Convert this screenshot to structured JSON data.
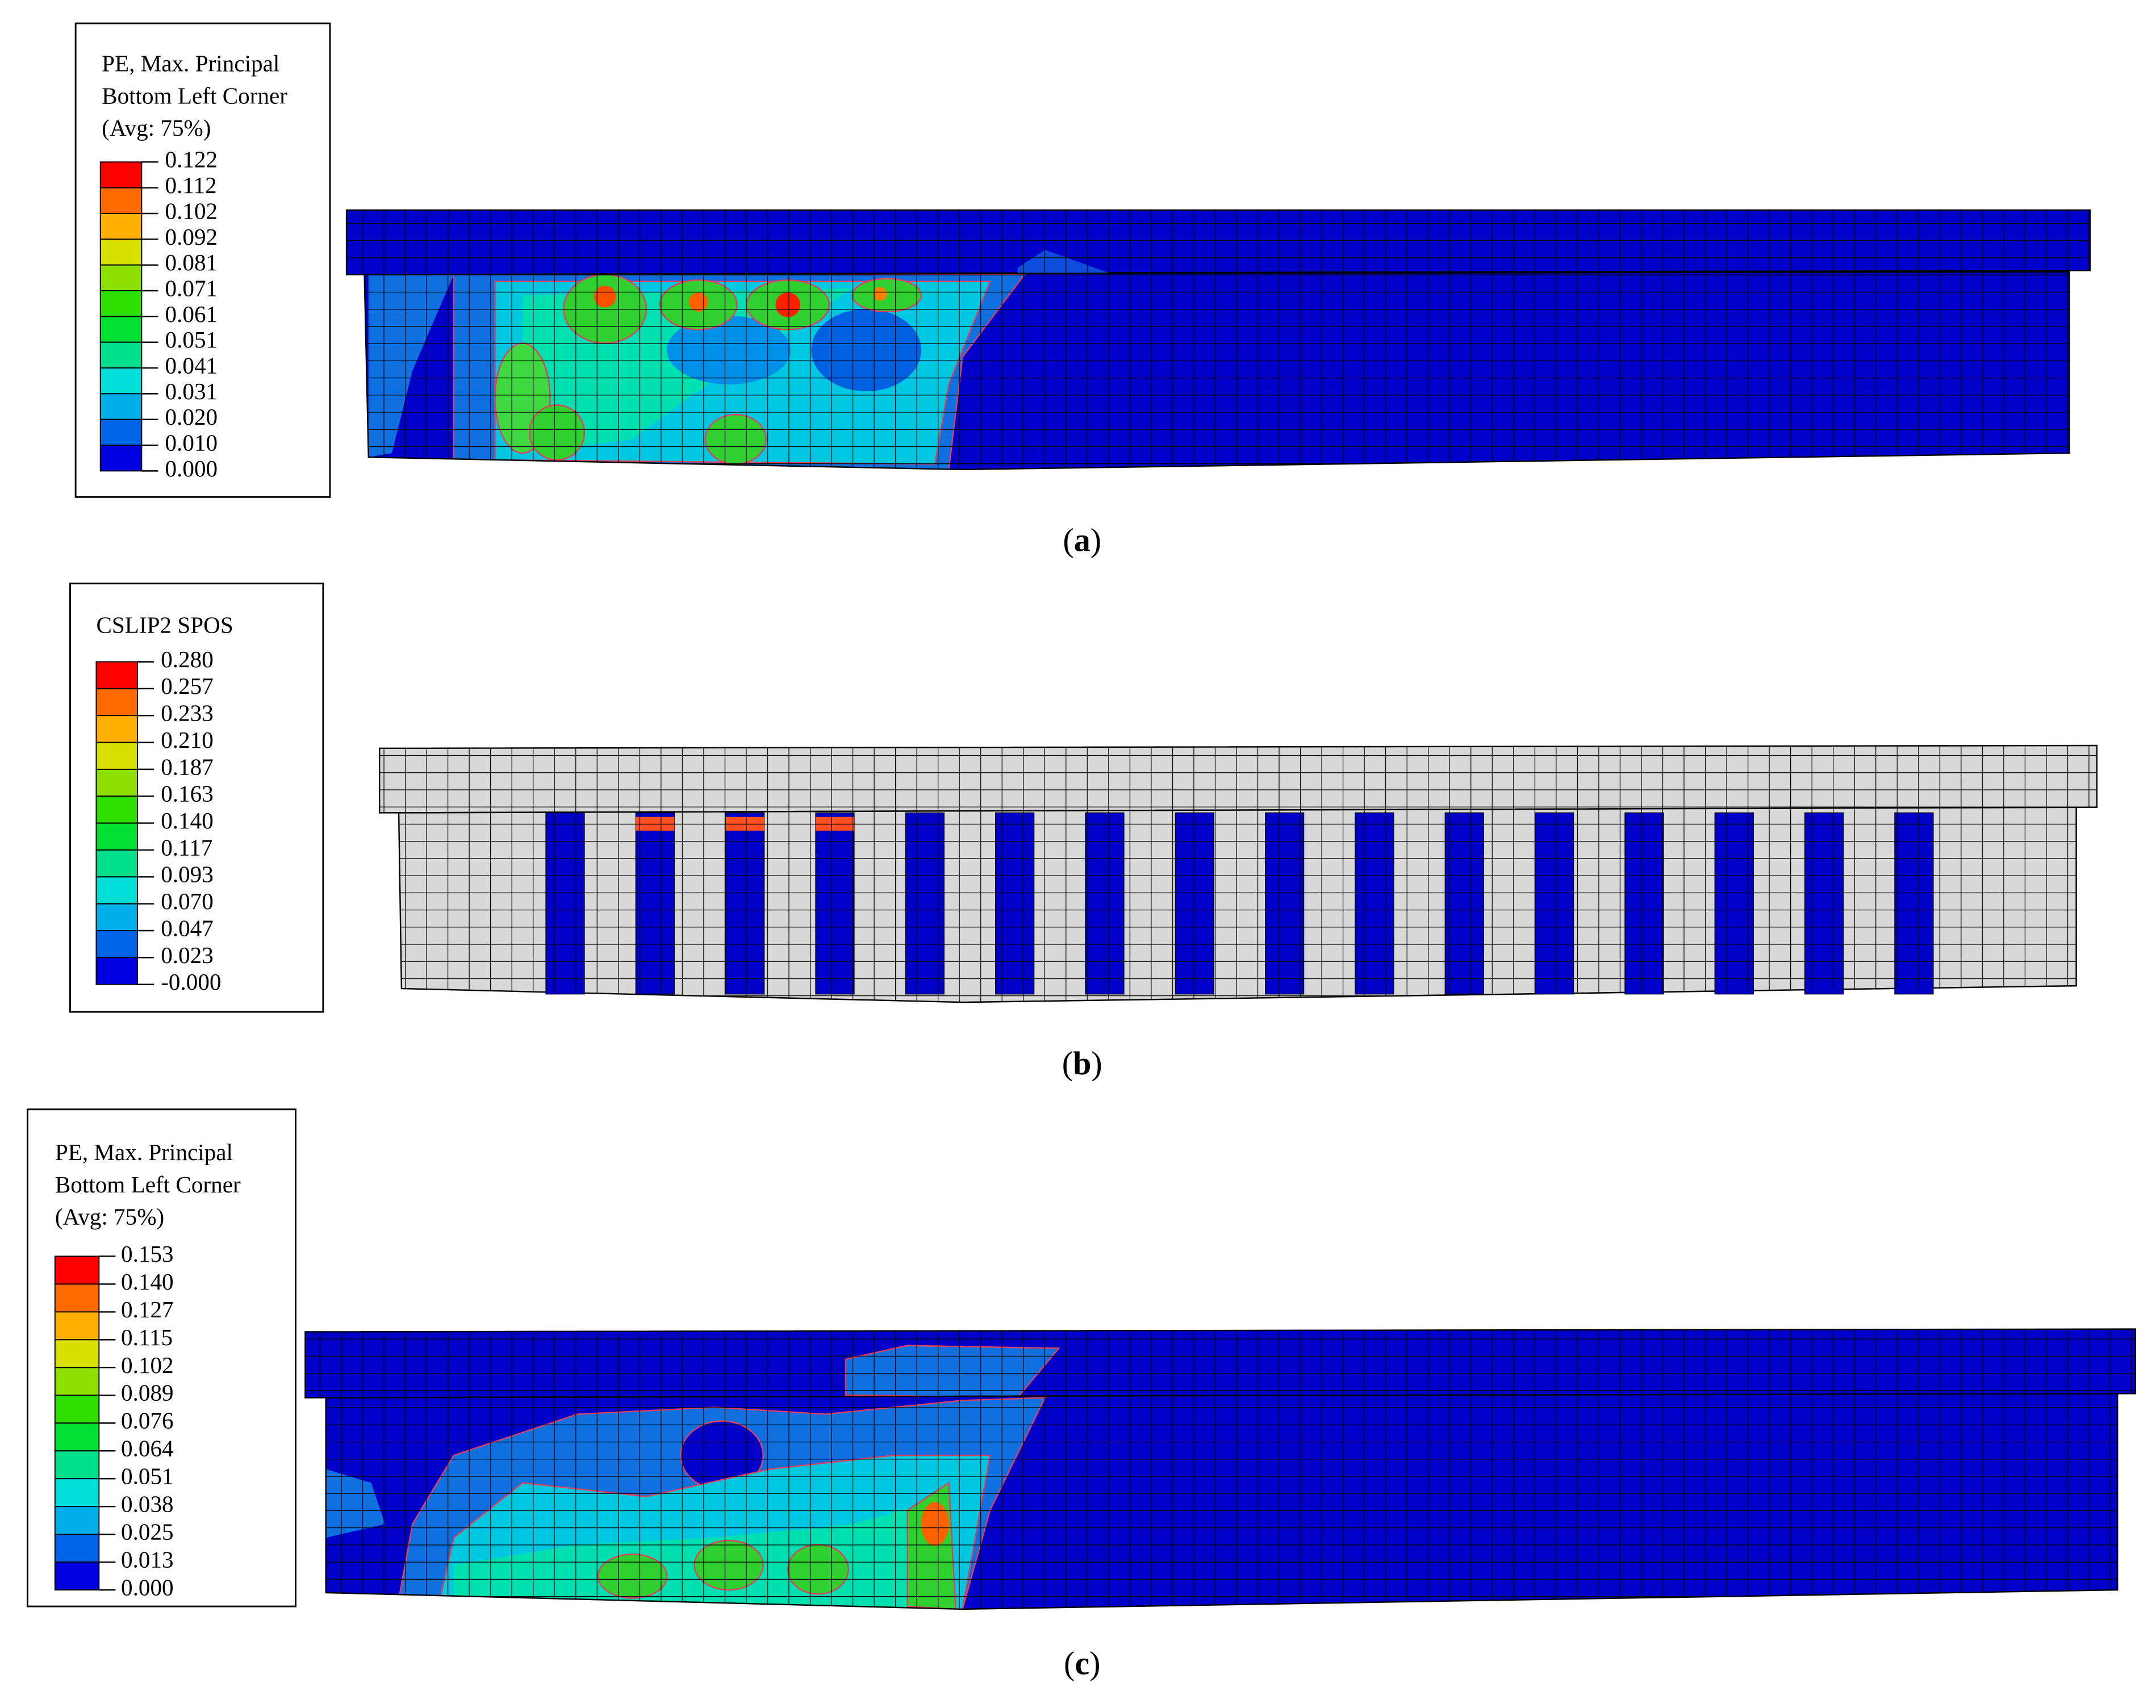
{
  "panels": [
    {
      "legend": {
        "title_lines": [
          "PE, Max. Principal",
          "Bottom Left Corner",
          "(Avg: 75%)"
        ],
        "levels": [
          "0.122",
          "0.112",
          "0.102",
          "0.092",
          "0.081",
          "0.071",
          "0.061",
          "0.051",
          "0.041",
          "0.031",
          "0.020",
          "0.010",
          "0.000"
        ]
      },
      "caption": {
        "open": "(",
        "letter": "a",
        "close": ")"
      }
    },
    {
      "legend": {
        "title_lines": [
          "CSLIP2   SPOS"
        ],
        "levels": [
          "0.280",
          "0.257",
          "0.233",
          "0.210",
          "0.187",
          "0.163",
          "0.140",
          "0.117",
          "0.093",
          "0.070",
          "0.047",
          "0.023",
          "-0.000"
        ]
      },
      "caption": {
        "open": "(",
        "letter": "b",
        "close": ")"
      }
    },
    {
      "legend": {
        "title_lines": [
          "PE, Max. Principal",
          "Bottom Left Corner",
          "(Avg: 75%)"
        ],
        "levels": [
          "0.153",
          "0.140",
          "0.127",
          "0.115",
          "0.102",
          "0.089",
          "0.076",
          "0.064",
          "0.051",
          "0.038",
          "0.025",
          "0.013",
          "0.000"
        ]
      },
      "caption": {
        "open": "(",
        "letter": "c",
        "close": ")"
      }
    }
  ]
}
